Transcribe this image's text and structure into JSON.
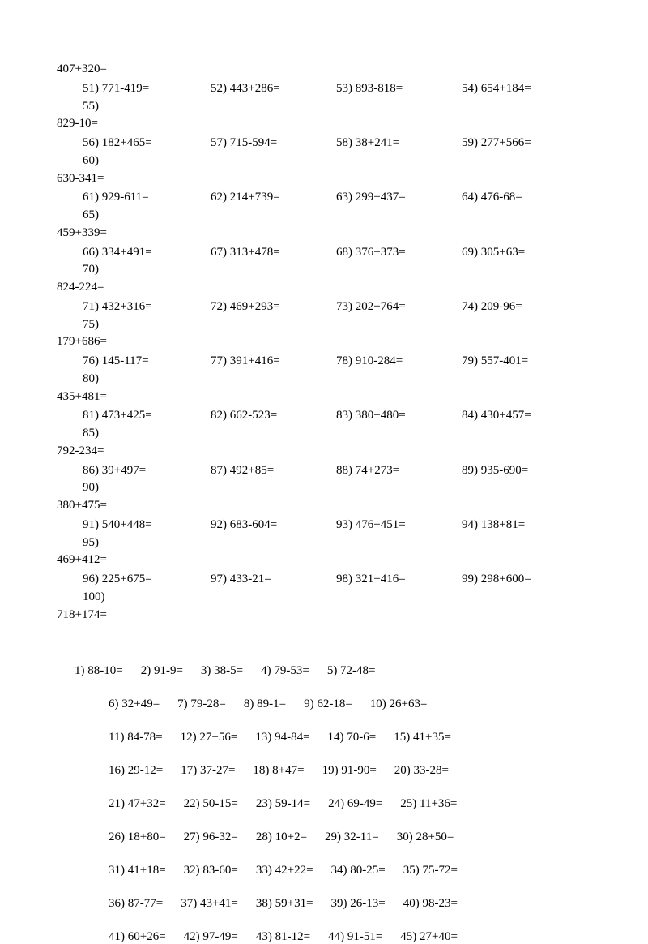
{
  "font_family": "Times New Roman, serif",
  "font_size": 15,
  "text_color": "#000000",
  "background_color": "#ffffff",
  "section_one": {
    "orphan": "407+320=",
    "groups": [
      {
        "start": 51,
        "items": [
          "771-419=",
          "443+286=",
          "893-818=",
          "654+184="
        ],
        "wrap": "829-10="
      },
      {
        "start": 56,
        "items": [
          "182+465=",
          "715-594=",
          "38+241=",
          "277+566="
        ],
        "wrap": "630-341="
      },
      {
        "start": 61,
        "items": [
          "929-611=",
          "214+739=",
          "299+437=",
          "476-68="
        ],
        "wrap": "459+339="
      },
      {
        "start": 66,
        "items": [
          "334+491=",
          "313+478=",
          "376+373=",
          "305+63="
        ],
        "wrap": "824-224="
      },
      {
        "start": 71,
        "items": [
          "432+316=",
          "469+293=",
          "202+764=",
          "209-96="
        ],
        "wrap": "179+686="
      },
      {
        "start": 76,
        "items": [
          "145-117=",
          "391+416=",
          "910-284=",
          "557-401="
        ],
        "wrap": "435+481="
      },
      {
        "start": 81,
        "items": [
          "473+425=",
          "662-523=",
          "380+480=",
          "430+457="
        ],
        "wrap": "792-234="
      },
      {
        "start": 86,
        "items": [
          "39+497=",
          "492+85=",
          "74+273=",
          "935-690="
        ],
        "wrap": "380+475="
      },
      {
        "start": 91,
        "items": [
          "540+448=",
          "683-604=",
          "476+451=",
          "138+81="
        ],
        "wrap": "469+412="
      },
      {
        "start": 96,
        "items": [
          "225+675=",
          "433-21=",
          "321+416=",
          "298+600="
        ],
        "wrap": "718+174="
      }
    ]
  },
  "section_two": {
    "first_row": [
      "1) 88-10=",
      "2) 91-9=",
      "3) 38-5=",
      "4) 79-53=",
      "5) 72-48="
    ],
    "rows": [
      [
        "6) 32+49=",
        "7) 79-28=",
        "8) 89-1=",
        "9) 62-18=",
        "10) 26+63="
      ],
      [
        "11) 84-78=",
        "12) 27+56=",
        "13) 94-84=",
        "14) 70-6=",
        "15) 41+35="
      ],
      [
        "16) 29-12=",
        "17) 37-27=",
        "18) 8+47=",
        "19) 91-90=",
        "20) 33-28="
      ],
      [
        "21) 47+32=",
        "22) 50-15=",
        "23) 59-14=",
        "24) 69-49=",
        "25) 11+36="
      ],
      [
        "26) 18+80=",
        "27) 96-32=",
        "28) 10+2=",
        "29) 32-11=",
        "30) 28+50="
      ],
      [
        "31) 41+18=",
        "32) 83-60=",
        "33) 42+22=",
        "34) 80-25=",
        "35) 75-72="
      ],
      [
        "36) 87-77=",
        "37) 43+41=",
        "38) 59+31=",
        "39) 26-13=",
        "40) 98-23="
      ],
      [
        "41) 60+26=",
        "42) 97-49=",
        "43) 81-12=",
        "44) 91-51=",
        "45) 27+40="
      ]
    ]
  }
}
